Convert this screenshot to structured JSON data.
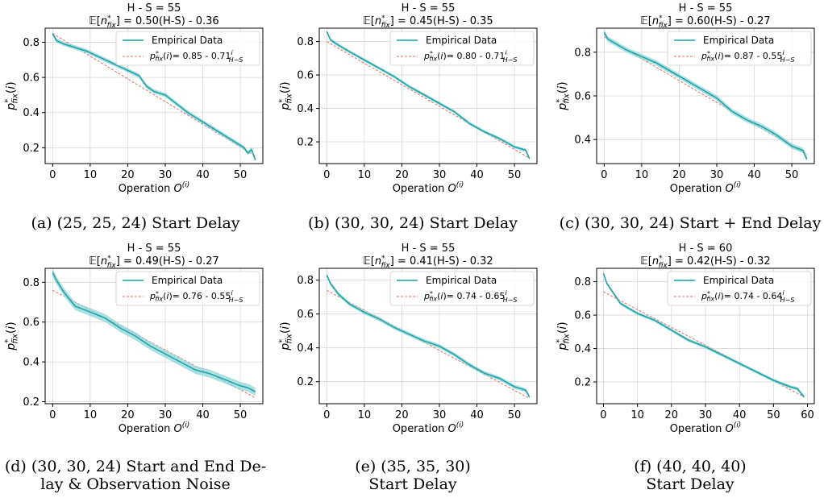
{
  "colors": {
    "empirical": "#17a2a6",
    "band": "#8fd4d6",
    "fit": "#e46a63",
    "grid": "#d7d7d7"
  },
  "labels": {
    "empirical_legend": "Empirical Data",
    "xlabel": "Operation O",
    "xlabel_sup": "(i)",
    "ylabel": "p*fix(i)"
  },
  "chart_data": [
    {
      "type": "line",
      "title": "H - S = 55",
      "subtitle": "𝔼[n*fix] = 0.50(H-S) - 0.36",
      "fit_label": "p*fix(i)= 0.85 - 0.71 i/(H−S)",
      "fit_text": "= 0.85 - 0.71",
      "fit": {
        "a": 0.85,
        "b": 0.71,
        "HS": 55
      },
      "xlim": [
        -2,
        56
      ],
      "ylim": [
        0.11,
        0.88
      ],
      "xticks": [
        0,
        10,
        20,
        30,
        40,
        50
      ],
      "yticks": [
        0.2,
        0.4,
        0.6,
        0.8
      ],
      "x_end": 54,
      "series": [
        {
          "name": "Empirical Data",
          "x": [
            0,
            1,
            3,
            6,
            9,
            12,
            15,
            18,
            20,
            23,
            25,
            27,
            30,
            33,
            36,
            39,
            42,
            45,
            48,
            51,
            52,
            53,
            54
          ],
          "y": [
            0.85,
            0.81,
            0.79,
            0.77,
            0.75,
            0.72,
            0.69,
            0.66,
            0.64,
            0.61,
            0.55,
            0.52,
            0.5,
            0.45,
            0.4,
            0.36,
            0.32,
            0.28,
            0.24,
            0.2,
            0.17,
            0.19,
            0.13
          ],
          "band": 0.012
        }
      ],
      "caption": [
        "(a) (25, 25, 24) Start Delay"
      ]
    },
    {
      "type": "line",
      "title": "H - S = 55",
      "subtitle": "𝔼[n*fix] = 0.45(H-S) - 0.35",
      "fit_label": "p*fix(i)= 0.80 - 0.71 i/(H−S)",
      "fit_text": "= 0.80 - 0.71",
      "fit": {
        "a": 0.8,
        "b": 0.71,
        "HS": 55
      },
      "xlim": [
        -2,
        56
      ],
      "ylim": [
        0.07,
        0.88
      ],
      "xticks": [
        0,
        10,
        20,
        30,
        40,
        50
      ],
      "yticks": [
        0.2,
        0.4,
        0.6,
        0.8
      ],
      "x_end": 54,
      "series": [
        {
          "name": "Empirical Data",
          "x": [
            0,
            1,
            3,
            6,
            10,
            14,
            18,
            22,
            26,
            30,
            34,
            38,
            42,
            46,
            50,
            53,
            54
          ],
          "y": [
            0.86,
            0.81,
            0.78,
            0.74,
            0.69,
            0.64,
            0.59,
            0.53,
            0.48,
            0.43,
            0.38,
            0.31,
            0.26,
            0.22,
            0.17,
            0.15,
            0.1
          ],
          "band": 0.01
        }
      ],
      "caption": [
        "(b) (30, 30, 24) Start Delay"
      ]
    },
    {
      "type": "line",
      "title": "H - S = 55",
      "subtitle": "𝔼[n*fix] = 0.60(H-S) - 0.27",
      "fit_label": "p*fix(i)= 0.87 - 0.55 i/(H−S)",
      "fit_text": "= 0.87 - 0.55",
      "fit": {
        "a": 0.87,
        "b": 0.55,
        "HS": 55
      },
      "xlim": [
        -2,
        56
      ],
      "ylim": [
        0.29,
        0.91
      ],
      "xticks": [
        0,
        10,
        20,
        30,
        40,
        50
      ],
      "yticks": [
        0.4,
        0.6,
        0.8
      ],
      "x_end": 54,
      "series": [
        {
          "name": "Empirical Data",
          "x": [
            0,
            1,
            3,
            6,
            10,
            14,
            18,
            22,
            26,
            30,
            34,
            38,
            42,
            46,
            50,
            53,
            54
          ],
          "y": [
            0.89,
            0.86,
            0.84,
            0.81,
            0.78,
            0.75,
            0.71,
            0.67,
            0.63,
            0.59,
            0.53,
            0.49,
            0.46,
            0.42,
            0.37,
            0.35,
            0.31
          ],
          "band": 0.012
        }
      ],
      "caption": [
        "(c) (30, 30, 24) Start + End Delay"
      ]
    },
    {
      "type": "line",
      "title": "H - S = 55",
      "subtitle": "𝔼[n*fix] = 0.49(H-S) - 0.27",
      "fit_label": "p*fix(i)= 0.76 - 0.55 i/(H−S)",
      "fit_text": "= 0.76 - 0.55",
      "fit": {
        "a": 0.76,
        "b": 0.55,
        "HS": 55
      },
      "xlim": [
        -2,
        56
      ],
      "ylim": [
        0.19,
        0.87
      ],
      "xticks": [
        0,
        10,
        20,
        30,
        40,
        50
      ],
      "yticks": [
        0.2,
        0.4,
        0.6,
        0.8
      ],
      "x_end": 54,
      "series": [
        {
          "name": "Empirical Data",
          "x": [
            0,
            1,
            3,
            6,
            10,
            14,
            18,
            22,
            26,
            30,
            34,
            38,
            42,
            46,
            50,
            52,
            53,
            54
          ],
          "y": [
            0.85,
            0.81,
            0.75,
            0.68,
            0.65,
            0.62,
            0.57,
            0.53,
            0.48,
            0.44,
            0.4,
            0.36,
            0.34,
            0.31,
            0.28,
            0.27,
            0.26,
            0.25
          ],
          "band": 0.02
        }
      ],
      "caption": [
        "(d) (30, 30, 24) Start and End De-",
        "lay & Observation Noise"
      ]
    },
    {
      "type": "line",
      "title": "H - S = 55",
      "subtitle": "𝔼[n*fix] = 0.41(H-S) - 0.32",
      "fit_label": "p*fix(i)= 0.74 - 0.65 i/(H−S)",
      "fit_text": "= 0.74 - 0.65",
      "fit": {
        "a": 0.74,
        "b": 0.65,
        "HS": 55
      },
      "xlim": [
        -2,
        56
      ],
      "ylim": [
        0.07,
        0.87
      ],
      "xticks": [
        0,
        10,
        20,
        30,
        40,
        50
      ],
      "yticks": [
        0.2,
        0.4,
        0.6,
        0.8
      ],
      "x_end": 54,
      "series": [
        {
          "name": "Empirical Data",
          "x": [
            0,
            1,
            3,
            6,
            10,
            14,
            18,
            22,
            26,
            30,
            34,
            38,
            42,
            46,
            50,
            53,
            54
          ],
          "y": [
            0.83,
            0.78,
            0.72,
            0.66,
            0.61,
            0.57,
            0.52,
            0.48,
            0.44,
            0.41,
            0.36,
            0.3,
            0.25,
            0.22,
            0.17,
            0.15,
            0.11
          ],
          "band": 0.012
        }
      ],
      "caption": [
        "(e) (35, 35, 30)",
        "Start Delay"
      ]
    },
    {
      "type": "line",
      "title": "H - S = 60",
      "subtitle": "𝔼[n*fix] = 0.42(H-S) - 0.32",
      "fit_label": "p*fix(i)= 0.74 - 0.64 i/(H−S)",
      "fit_text": "= 0.74 - 0.64",
      "fit": {
        "a": 0.74,
        "b": 0.64,
        "HS": 60
      },
      "xlim": [
        -2,
        62
      ],
      "ylim": [
        0.07,
        0.88
      ],
      "xticks": [
        0,
        10,
        20,
        30,
        40,
        50,
        60
      ],
      "yticks": [
        0.2,
        0.4,
        0.6,
        0.8
      ],
      "x_end": 59,
      "series": [
        {
          "name": "Empirical Data",
          "x": [
            0,
            1,
            3,
            5,
            10,
            15,
            20,
            25,
            30,
            35,
            40,
            45,
            50,
            55,
            57,
            59
          ],
          "y": [
            0.85,
            0.79,
            0.73,
            0.67,
            0.61,
            0.57,
            0.51,
            0.45,
            0.41,
            0.36,
            0.31,
            0.26,
            0.21,
            0.17,
            0.16,
            0.11
          ],
          "band": 0.01
        }
      ],
      "caption": [
        "(f) (40, 40, 40)",
        "Start Delay"
      ]
    }
  ]
}
